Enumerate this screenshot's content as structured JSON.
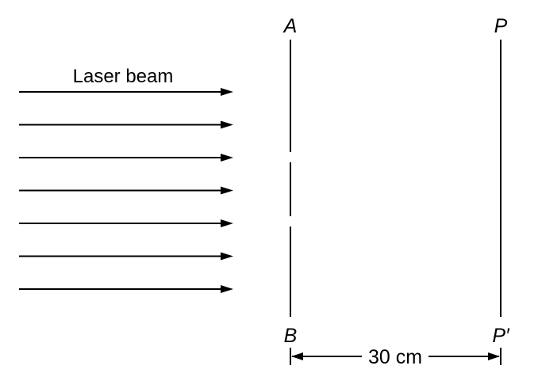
{
  "labels": {
    "laser_beam": "Laser beam",
    "slit_top": "A",
    "slit_bottom": "B",
    "screen_top": "P",
    "screen_bottom": "P′",
    "distance": "30 cm"
  },
  "colors": {
    "stroke": "#000000",
    "background": "#ffffff"
  },
  "beam": {
    "ray_count": 7
  }
}
